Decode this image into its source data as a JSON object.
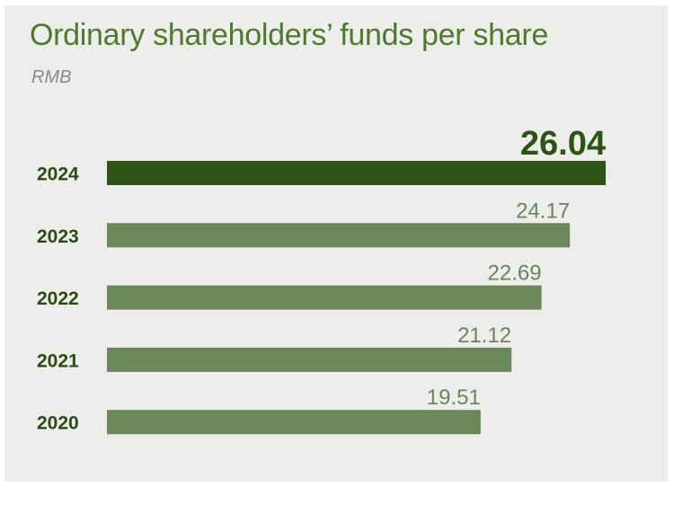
{
  "title": "Ordinary shareholders’ funds per share",
  "unit": "RMB",
  "colors": {
    "highlight_bar": "#2e5316",
    "bar": "#6b885a",
    "title": "#4f7a2b",
    "background": "#ededeb"
  },
  "chart_data": {
    "type": "bar",
    "orientation": "horizontal",
    "title": "Ordinary shareholders’ funds per share",
    "subtitle": "RMB",
    "categories": [
      "2024",
      "2023",
      "2022",
      "2021",
      "2020"
    ],
    "values": [
      26.04,
      24.17,
      22.69,
      21.12,
      19.51
    ],
    "value_labels": [
      "26.04",
      "24.17",
      "22.69",
      "21.12",
      "19.51"
    ],
    "highlight_index": 0,
    "xlim": [
      0,
      26.04
    ],
    "grid": false,
    "legend": "none"
  }
}
